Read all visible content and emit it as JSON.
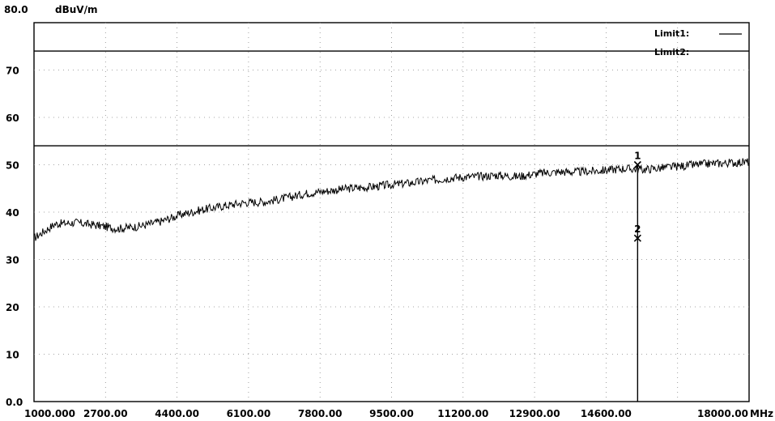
{
  "chart_data": {
    "type": "line",
    "ylabel": "dBuV/m",
    "xunit": "MHz",
    "xlim": [
      1000,
      18000
    ],
    "ylim": [
      0,
      80
    ],
    "y_top_label": "80.0",
    "y_ticks": [
      {
        "value": 70,
        "label": "70"
      },
      {
        "value": 60,
        "label": "60"
      },
      {
        "value": 50,
        "label": "50"
      },
      {
        "value": 40,
        "label": "40"
      },
      {
        "value": 30,
        "label": "30"
      },
      {
        "value": 20,
        "label": "20"
      },
      {
        "value": 10,
        "label": "10"
      },
      {
        "value": 0,
        "label": "0.0"
      }
    ],
    "x_ticks": [
      {
        "value": 1000,
        "label": "1000.000"
      },
      {
        "value": 2700,
        "label": "2700.00"
      },
      {
        "value": 4400,
        "label": "4400.00"
      },
      {
        "value": 6100,
        "label": "6100.00"
      },
      {
        "value": 7800,
        "label": "7800.00"
      },
      {
        "value": 9500,
        "label": "9500.00"
      },
      {
        "value": 11200,
        "label": "11200.00"
      },
      {
        "value": 12900,
        "label": "12900.00"
      },
      {
        "value": 14600,
        "label": "14600.00"
      },
      {
        "value": 18000,
        "label": "18000.00"
      }
    ],
    "grid": true,
    "grid_vertical_lines": [
      2700,
      4400,
      6100,
      7800,
      9500,
      11200,
      12900,
      14600,
      16300
    ],
    "limits": [
      {
        "label": "Limit1:",
        "value": 74.0
      },
      {
        "label": "Limit2:",
        "value": 54.0
      }
    ],
    "legend_position": "top-right",
    "series": [
      {
        "x": [
          1000,
          1500,
          2000,
          2500,
          3000,
          3500,
          4000,
          4500,
          5000,
          5500,
          6000,
          6500,
          7000,
          7500,
          8000,
          8500,
          9000,
          9500,
          10000,
          10500,
          11000,
          11500,
          12000,
          12500,
          13000,
          13500,
          14000,
          14500,
          15000,
          15500,
          16000,
          16500,
          17000,
          17500,
          18000
        ],
        "y": [
          34.5,
          37.5,
          37.8,
          37.2,
          36.5,
          37.0,
          38.0,
          39.5,
          40.5,
          41.3,
          42.0,
          42.2,
          43.0,
          44.0,
          44.5,
          45.0,
          45.3,
          45.8,
          46.2,
          46.8,
          47.3,
          47.5,
          47.8,
          47.5,
          48.2,
          48.5,
          48.5,
          48.8,
          49.2,
          49.0,
          49.4,
          49.8,
          50.2,
          50.4,
          50.6
        ],
        "color": "#000000"
      }
    ],
    "markers": [
      {
        "label": "1",
        "x": 15350,
        "y": 50.0
      },
      {
        "label": "2",
        "x": 15350,
        "y": 34.5
      }
    ]
  }
}
